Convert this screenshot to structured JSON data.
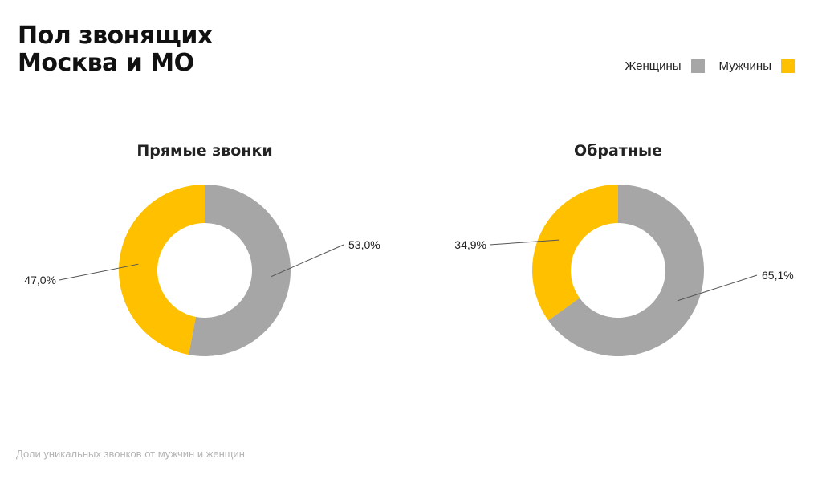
{
  "header": {
    "title_line1": "Пол звонящих",
    "title_line2": "Москва и МО"
  },
  "legend": [
    {
      "label": "Женщины",
      "color": "#a6a6a6"
    },
    {
      "label": "Мужчины",
      "color": "#ffc000"
    }
  ],
  "footnote": "Доли уникальных звонков от мужчин и женщин",
  "chart_data": [
    {
      "type": "pie",
      "donut": true,
      "title": "Прямые звонки",
      "slices": [
        {
          "name": "Женщины",
          "value": 53.0,
          "label": "53,0%",
          "color": "#a6a6a6"
        },
        {
          "name": "Мужчины",
          "value": 47.0,
          "label": "47,0%",
          "color": "#ffc000"
        }
      ]
    },
    {
      "type": "pie",
      "donut": true,
      "title": "Обратные",
      "slices": [
        {
          "name": "Женщины",
          "value": 65.1,
          "label": "65,1%",
          "color": "#a6a6a6"
        },
        {
          "name": "Мужчины",
          "value": 34.9,
          "label": "34,9%",
          "color": "#ffc000"
        }
      ]
    }
  ]
}
